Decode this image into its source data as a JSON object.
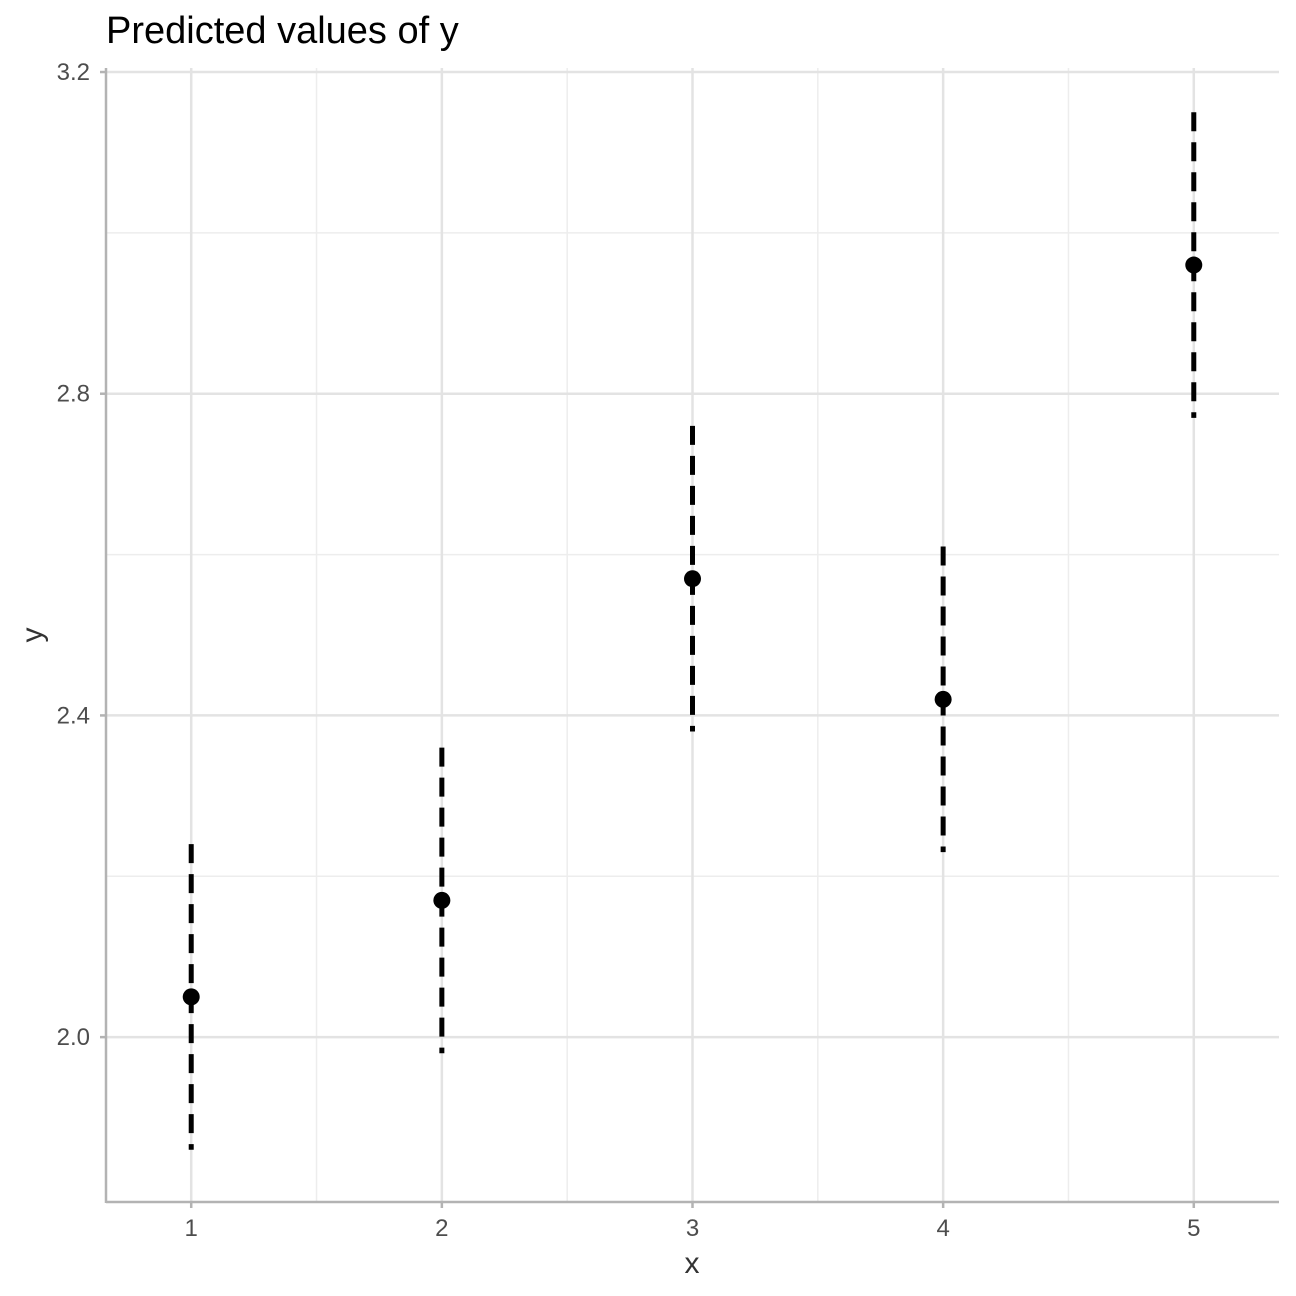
{
  "chart_data": {
    "type": "scatter",
    "title": "Predicted values of y",
    "xlabel": "x",
    "ylabel": "y",
    "x_ticks": [
      "1",
      "2",
      "3",
      "4",
      "5"
    ],
    "y_ticks": [
      "2.0",
      "2.4",
      "2.8",
      "3.2"
    ],
    "xlim": [
      0.66,
      5.34
    ],
    "ylim": [
      1.795,
      3.205
    ],
    "grid": true,
    "legend": "none",
    "series": [
      {
        "points": [
          {
            "x": 1,
            "y": 2.05,
            "ci_low": 1.86,
            "ci_high": 2.24
          },
          {
            "x": 2,
            "y": 2.17,
            "ci_low": 1.98,
            "ci_high": 2.36
          },
          {
            "x": 3,
            "y": 2.57,
            "ci_low": 2.38,
            "ci_high": 2.76
          },
          {
            "x": 4,
            "y": 2.42,
            "ci_low": 2.23,
            "ci_high": 2.61
          },
          {
            "x": 5,
            "y": 2.96,
            "ci_low": 2.77,
            "ci_high": 3.15
          }
        ]
      }
    ],
    "colors": {
      "point": "#000000",
      "grid_major": "#e3e3e3",
      "grid_minor": "#ededed",
      "axis_line": "#b3b3b3"
    }
  }
}
